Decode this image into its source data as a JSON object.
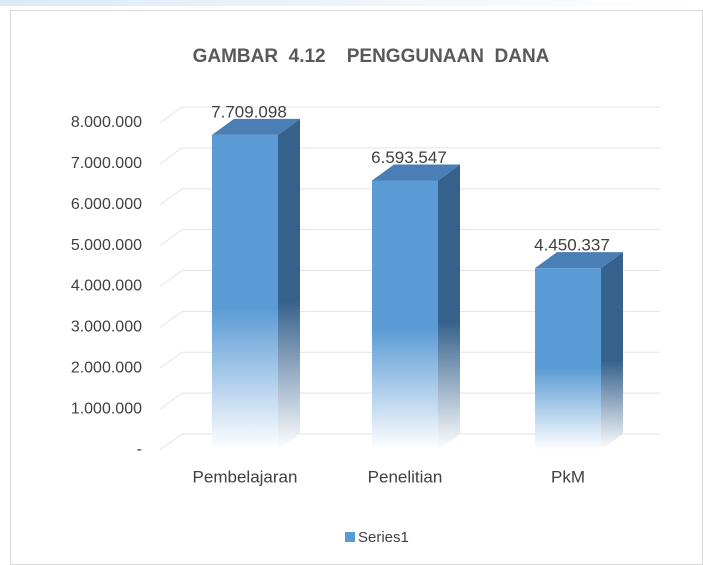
{
  "chart_data": {
    "type": "bar",
    "title": "GAMBAR  4.12    PENGGUNAAN  DANA",
    "categories": [
      "Pembelajaran",
      "Penelitian",
      "PkM"
    ],
    "series": [
      {
        "name": "Series1",
        "color": "#5b9bd5",
        "values": [
          7709098,
          6593547,
          4450337
        ],
        "value_labels": [
          "7.709.098",
          "6.593.547",
          "4.450.337"
        ]
      }
    ],
    "ylim": [
      0,
      8000000
    ],
    "yticks": [
      {
        "value": 0,
        "label": "-"
      },
      {
        "value": 1000000,
        "label": "1.000.000"
      },
      {
        "value": 2000000,
        "label": "2.000.000"
      },
      {
        "value": 3000000,
        "label": "3.000.000"
      },
      {
        "value": 4000000,
        "label": "4.000.000"
      },
      {
        "value": 5000000,
        "label": "5.000.000"
      },
      {
        "value": 6000000,
        "label": "6.000.000"
      },
      {
        "value": 7000000,
        "label": "7.000.000"
      },
      {
        "value": 8000000,
        "label": "8.000.000"
      }
    ],
    "grid": true,
    "legend": "bottom"
  }
}
